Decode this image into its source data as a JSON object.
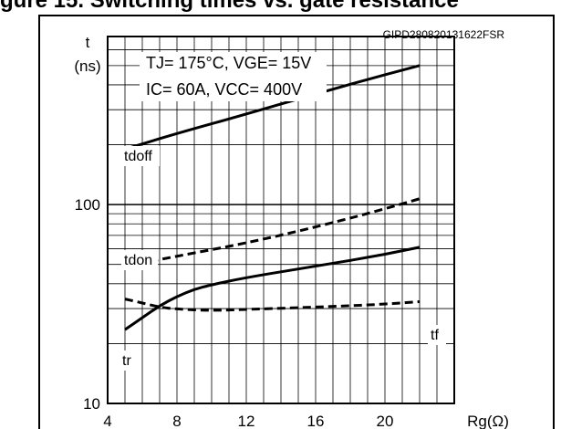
{
  "page_heading": "gure 15. Switching times vs. gate resistance",
  "chart_data": {
    "type": "line",
    "code": "GIPD280820131622FSR",
    "y_label": [
      "t",
      "(ns)"
    ],
    "x_label": "Rg(Ω)",
    "x_ticks": [
      4,
      8,
      12,
      16,
      20
    ],
    "y_ticks": [
      10,
      100
    ],
    "xlim": [
      4,
      24
    ],
    "ylim": [
      10,
      700
    ],
    "y_scale": "log",
    "grid": true,
    "conditions": [
      "TJ= 175°C, VGE= 15V",
      "IC= 60A, VCC= 400V"
    ],
    "series": [
      {
        "name": "tdoff",
        "style": "solid",
        "points": [
          [
            5,
            190
          ],
          [
            8,
            228
          ],
          [
            12,
            285
          ],
          [
            16,
            360
          ],
          [
            20,
            450
          ],
          [
            22,
            500
          ]
        ]
      },
      {
        "name": "tdon",
        "style": "dashed",
        "points": [
          [
            5,
            49
          ],
          [
            8,
            55
          ],
          [
            12,
            64
          ],
          [
            16,
            77
          ],
          [
            20,
            95
          ],
          [
            22,
            107
          ]
        ]
      },
      {
        "name": "tr",
        "style": "solid",
        "points": [
          [
            5,
            23.5
          ],
          [
            6,
            27
          ],
          [
            7,
            31
          ],
          [
            8,
            34.5
          ],
          [
            9,
            37.5
          ],
          [
            10,
            39.5
          ],
          [
            12,
            43
          ],
          [
            16,
            49
          ],
          [
            20,
            56
          ],
          [
            22,
            61
          ]
        ]
      },
      {
        "name": "tf",
        "style": "dashed",
        "points": [
          [
            5,
            33.5
          ],
          [
            6,
            32
          ],
          [
            7,
            30.5
          ],
          [
            8,
            29.8
          ],
          [
            10,
            29.3
          ],
          [
            12,
            29.7
          ],
          [
            16,
            30.5
          ],
          [
            20,
            31.5
          ],
          [
            22,
            32.5
          ]
        ]
      }
    ]
  }
}
